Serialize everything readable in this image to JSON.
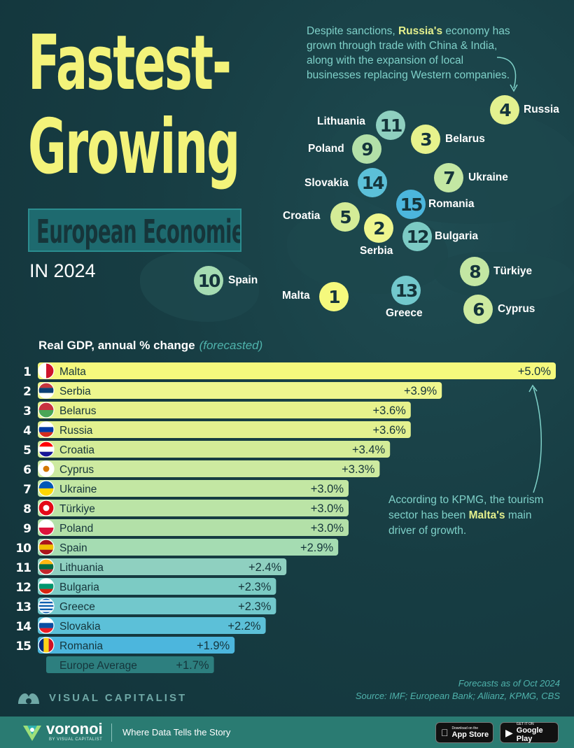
{
  "title": {
    "line1": "Fastest-",
    "line2": "Growing",
    "subtitle": "European Economies",
    "year": "IN 2024"
  },
  "annotations": {
    "russia_note_pre": "Despite sanctions, ",
    "russia_note_bold": "Russia's",
    "russia_note_post": " economy has grown through trade with China & India, along with the expansion of local businesses replacing Western companies.",
    "kpmg_note_pre": "According to KPMG, the tourism sector has been ",
    "kpmg_note_bold": "Malta's",
    "kpmg_note_post": " main driver of growth."
  },
  "map_badges": [
    {
      "rank": "4",
      "country": "Russia",
      "color": "#e3f18f"
    },
    {
      "rank": "11",
      "country": "Lithuania",
      "color": "#8fd0c0"
    },
    {
      "rank": "3",
      "country": "Belarus",
      "color": "#e6f28c"
    },
    {
      "rank": "9",
      "country": "Poland",
      "color": "#b3e0a8"
    },
    {
      "rank": "7",
      "country": "Ukraine",
      "color": "#c3e7a3"
    },
    {
      "rank": "14",
      "country": "Slovakia",
      "color": "#5cc0d8"
    },
    {
      "rank": "15",
      "country": "Romania",
      "color": "#4cb6dd"
    },
    {
      "rank": "5",
      "country": "Croatia",
      "color": "#d4ec97"
    },
    {
      "rank": "2",
      "country": "Serbia",
      "color": "#eef68e"
    },
    {
      "rank": "12",
      "country": "Bulgaria",
      "color": "#7ccbc4"
    },
    {
      "rank": "8",
      "country": "Türkiye",
      "color": "#c3e7a3"
    },
    {
      "rank": "10",
      "country": "Spain",
      "color": "#a5dcb2"
    },
    {
      "rank": "1",
      "country": "Malta",
      "color": "#f5f97d"
    },
    {
      "rank": "13",
      "country": "Greece",
      "color": "#72c8cc"
    },
    {
      "rank": "6",
      "country": "Cyprus",
      "color": "#cdeaa0"
    }
  ],
  "chart_data": {
    "type": "bar",
    "title": "Real GDP, annual % change",
    "title_note": "(forecasted)",
    "categories": [
      "Malta",
      "Serbia",
      "Belarus",
      "Russia",
      "Croatia",
      "Cyprus",
      "Ukraine",
      "Türkiye",
      "Poland",
      "Spain",
      "Lithuania",
      "Bulgaria",
      "Greece",
      "Slovakia",
      "Romania"
    ],
    "ranks": [
      "1",
      "2",
      "3",
      "4",
      "5",
      "6",
      "7",
      "8",
      "9",
      "10",
      "11",
      "12",
      "13",
      "14",
      "15"
    ],
    "values": [
      5.0,
      3.9,
      3.6,
      3.6,
      3.4,
      3.3,
      3.0,
      3.0,
      3.0,
      2.9,
      2.4,
      2.3,
      2.3,
      2.2,
      1.9
    ],
    "value_labels": [
      "+5.0%",
      "+3.9%",
      "+3.6%",
      "+3.6%",
      "+3.4%",
      "+3.3%",
      "+3.0%",
      "+3.0%",
      "+3.0%",
      "+2.9%",
      "+2.4%",
      "+2.3%",
      "+2.3%",
      "+2.2%",
      "+1.9%"
    ],
    "bar_colors": [
      "#f5f97d",
      "#eef68e",
      "#e6f28c",
      "#e3f18f",
      "#d4ec97",
      "#cdeaa0",
      "#c3e7a3",
      "#bbe4a6",
      "#b3e0a8",
      "#a5dcb2",
      "#8fd0c0",
      "#7ccbc4",
      "#72c8cc",
      "#5cc0d8",
      "#4cb6dd"
    ],
    "flags": [
      {
        "type": "v2",
        "c1": "#ffffff",
        "c2": "#cf142b"
      },
      {
        "type": "h3",
        "c1": "#c6363c",
        "c2": "#0c4076",
        "c3": "#ffffff"
      },
      {
        "type": "h2",
        "c1": "#c8313e",
        "c2": "#4aa657"
      },
      {
        "type": "h3",
        "c1": "#ffffff",
        "c2": "#0039a6",
        "c3": "#d52b1e"
      },
      {
        "type": "h3",
        "c1": "#ff0000",
        "c2": "#ffffff",
        "c3": "#171796"
      },
      {
        "type": "solid",
        "c1": "#ffffff",
        "c2": "#d57800"
      },
      {
        "type": "h2",
        "c1": "#0057b7",
        "c2": "#ffd700"
      },
      {
        "type": "solid",
        "c1": "#e30a17",
        "c2": "#ffffff"
      },
      {
        "type": "h2",
        "c1": "#ffffff",
        "c2": "#dc143c"
      },
      {
        "type": "h3",
        "c1": "#aa151b",
        "c2": "#f1bf00",
        "c3": "#aa151b"
      },
      {
        "type": "h3",
        "c1": "#fdb913",
        "c2": "#006a44",
        "c3": "#c1272d"
      },
      {
        "type": "h3",
        "c1": "#ffffff",
        "c2": "#00966e",
        "c3": "#d62612"
      },
      {
        "type": "stripes",
        "c1": "#0d5eaf",
        "c2": "#ffffff"
      },
      {
        "type": "h3",
        "c1": "#ffffff",
        "c2": "#0b4ea2",
        "c3": "#ee1c25"
      },
      {
        "type": "v3",
        "c1": "#002b7f",
        "c2": "#fcd116",
        "c3": "#ce1126"
      }
    ],
    "average": {
      "label": "Europe Average",
      "value": 1.7,
      "value_label": "+1.7%",
      "color": "#2d7f7f"
    },
    "xlim": [
      0,
      5.0
    ]
  },
  "footnote": {
    "line1": "Forecasts as of Oct 2024",
    "line2": "Source: IMF; European Bank; Allianz, KPMG, CBS"
  },
  "brand": {
    "vc_name": "VISUAL CAPITALIST",
    "voronoi_name": "voronoi",
    "voronoi_sub": "BY VISUAL CAPITALIST",
    "tagline": "Where Data Tells the Story",
    "app_store_small": "Download on the",
    "app_store_big": "App Store",
    "google_play_small": "GET IT ON",
    "google_play_big": "Google Play"
  }
}
